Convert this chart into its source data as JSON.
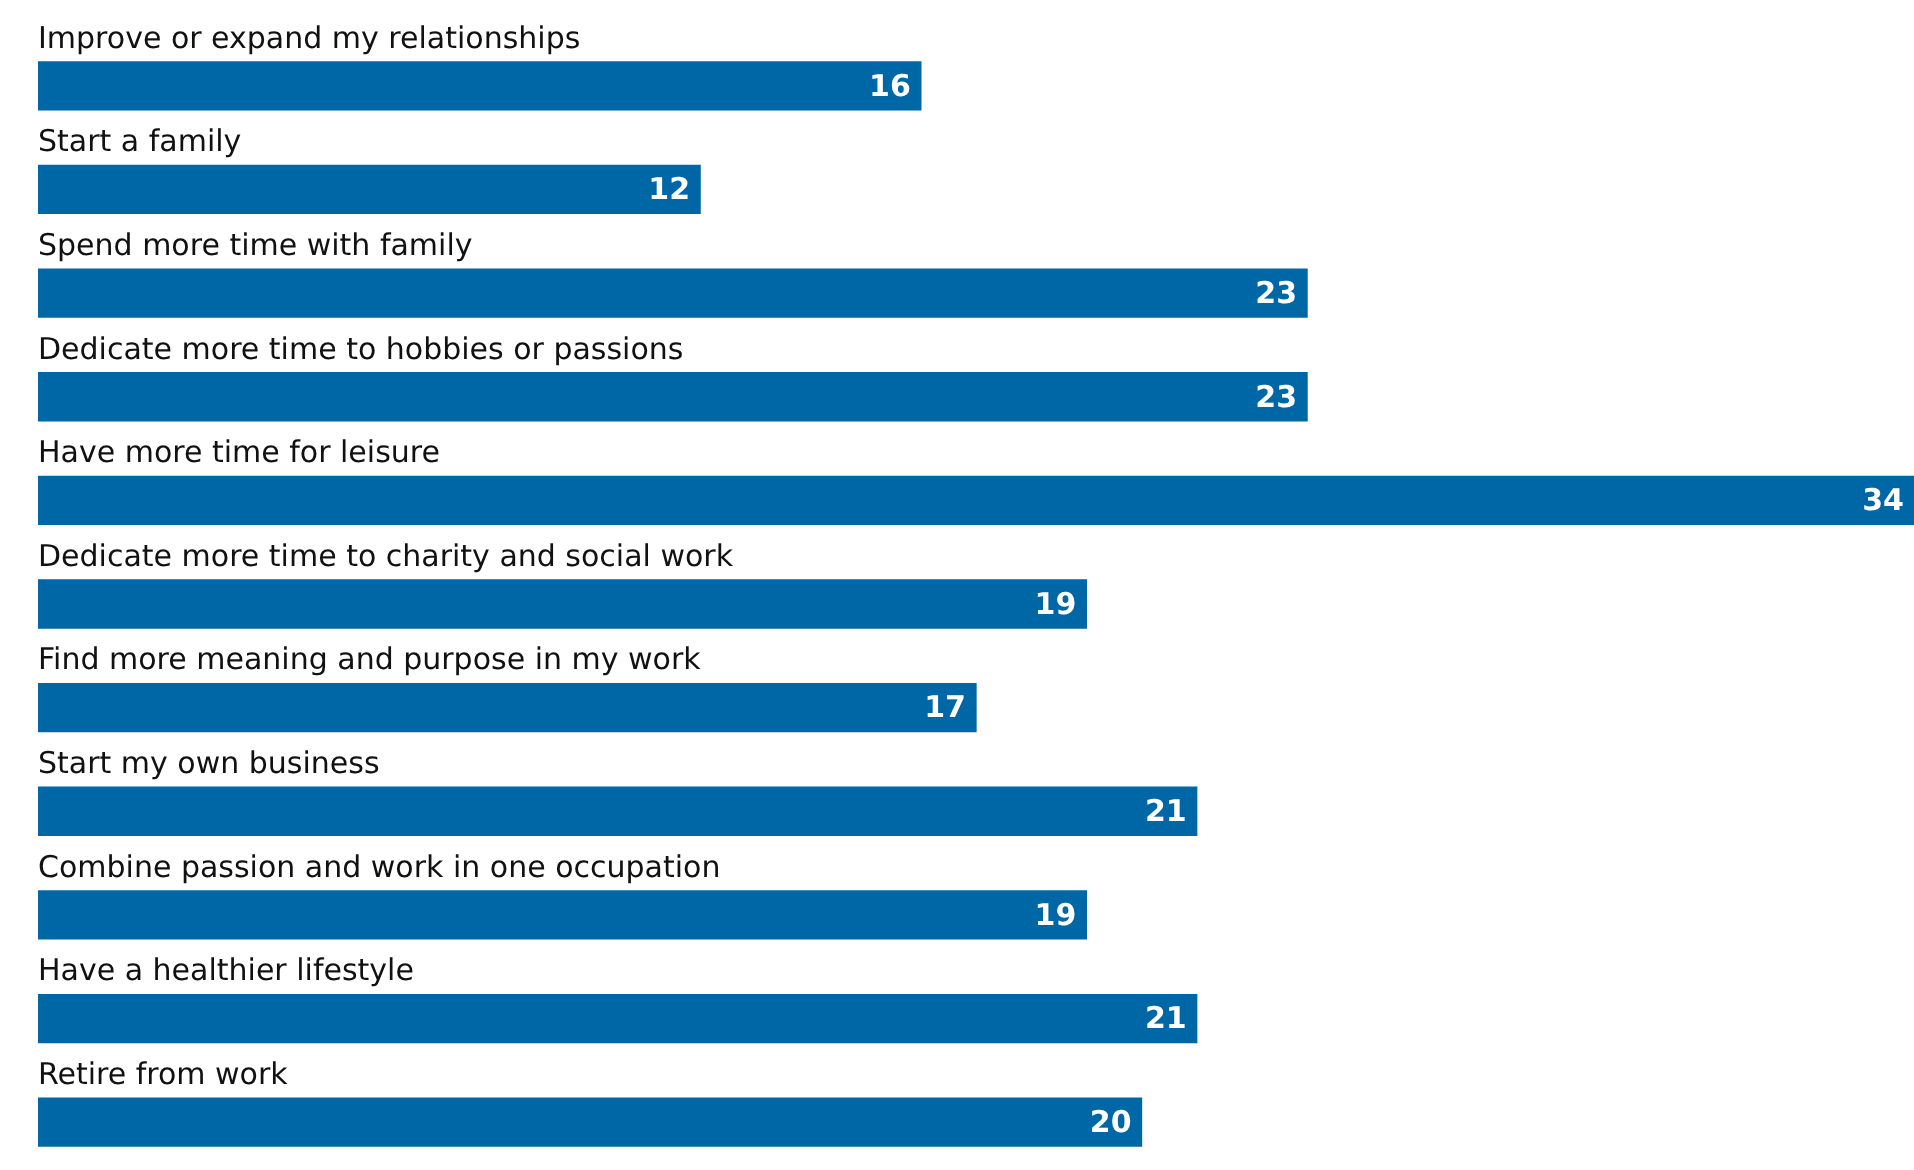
{
  "chart_data": {
    "type": "bar",
    "orientation": "horizontal",
    "categories": [
      "Improve or expand my relationships",
      "Start a family",
      "Spend more time with family",
      "Dedicate more time to hobbies or passions",
      "Have more time for leisure",
      "Dedicate more time to charity and social work",
      "Find more meaning and purpose in my work",
      "Start my own business",
      "Combine passion and work in one occupation",
      "Have a healthier lifestyle",
      "Retire from work"
    ],
    "values": [
      16,
      12,
      23,
      23,
      34,
      19,
      17,
      21,
      19,
      21,
      20
    ],
    "color": "#0067a6",
    "data_labels": true,
    "legend": false
  }
}
